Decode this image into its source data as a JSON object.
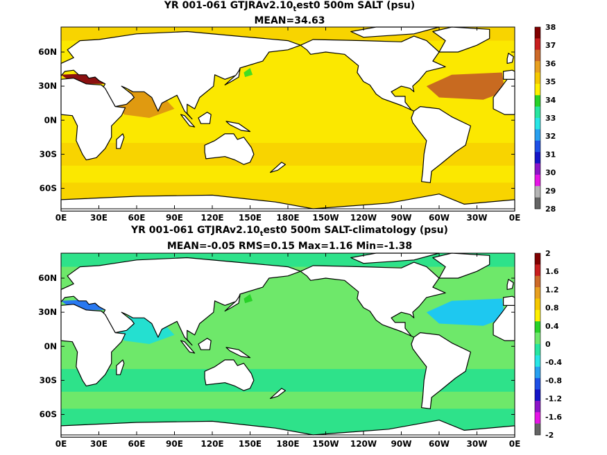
{
  "panels": [
    {
      "title_pre": "YR 001-061 GTJRAv2.10",
      "title_sub": "t",
      "title_post": "est0 500m SALT (psu)",
      "subtitle": "MEAN=34.63",
      "colors": {
        "ocean_base": "#f8d400",
        "ocean_mid": "#fbe800",
        "warm": "#e09a10",
        "hot": "#c86a20",
        "max": "#8b1010",
        "fresh": "#44dd22"
      },
      "colorbar": {
        "labels": [
          "38",
          "37",
          "36",
          "35",
          "34",
          "33",
          "32",
          "31",
          "30",
          "29",
          "28"
        ],
        "colors": [
          "#800000",
          "#c81e1e",
          "#cd6a28",
          "#e8a020",
          "#f5c800",
          "#fff000",
          "#28d228",
          "#28e6a0",
          "#28e6e6",
          "#28a0f0",
          "#1e50e6",
          "#1414c8",
          "#8c14c8",
          "#e614e6",
          "#b4b4b4",
          "#646464"
        ]
      }
    },
    {
      "title_pre": "YR 001-061 GTJRAv2.10",
      "title_sub": "t",
      "title_post": "est0 500m SALT-climatology (psu)",
      "subtitle": "MEAN=-0.05   RMS=0.15   Max=1.16   Min=-1.38",
      "colors": {
        "ocean_base": "#2ee28a",
        "ocean_mid": "#6ee86a",
        "warm": "#24e0d0",
        "hot": "#1ec8f0",
        "max": "#2878f0",
        "fresh": "#28d228"
      },
      "colorbar": {
        "labels": [
          "2",
          "1.6",
          "1.2",
          "0.8",
          "0.4",
          "0",
          "-0.4",
          "-0.8",
          "-1.2",
          "-1.6",
          "-2"
        ],
        "colors": [
          "#800000",
          "#c81e1e",
          "#cd6a28",
          "#e8a020",
          "#f5c800",
          "#fff000",
          "#28d228",
          "#6ee86a",
          "#28e6a0",
          "#28e6e6",
          "#28a0f0",
          "#1e50e6",
          "#1414c8",
          "#8c14c8",
          "#e614e6",
          "#646464"
        ]
      }
    }
  ],
  "axes": {
    "x_ticks": [
      "0E",
      "30E",
      "60E",
      "90E",
      "120E",
      "150E",
      "180E",
      "150W",
      "120W",
      "90W",
      "60W",
      "30W",
      "0E"
    ],
    "y_ticks": [
      "60N",
      "30N",
      "0N",
      "30S",
      "60S"
    ]
  }
}
